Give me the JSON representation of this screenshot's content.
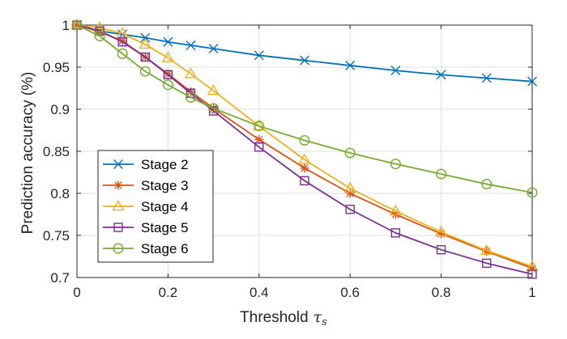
{
  "chart_data": {
    "type": "line",
    "title": "",
    "xlabel": "Threshold",
    "xlabel_symbol": "τ",
    "xlabel_subscript": "s",
    "ylabel": "Prediction accuracy (%)",
    "xlim": [
      0,
      1
    ],
    "ylim": [
      0.7,
      1
    ],
    "xticks": [
      0,
      0.2,
      0.4,
      0.6,
      0.8,
      1
    ],
    "xtick_labels": [
      "0",
      "0.2",
      "0.4",
      "0.6",
      "0.8",
      "1"
    ],
    "yticks": [
      0.7,
      0.75,
      0.8,
      0.85,
      0.9,
      0.95,
      1
    ],
    "ytick_labels": [
      "0.7",
      "0.75",
      "0.8",
      "0.85",
      "0.9",
      "0.95",
      "1"
    ],
    "grid": true,
    "legend_position": "bottom-left",
    "series": [
      {
        "name": "Stage 2",
        "color": "#0072BD",
        "marker": "x",
        "x": [
          0,
          0.05,
          0.1,
          0.15,
          0.2,
          0.25,
          0.3,
          0.4,
          0.5,
          0.6,
          0.7,
          0.8,
          0.9,
          1.0
        ],
        "y": [
          1.0,
          0.993,
          0.989,
          0.985,
          0.98,
          0.976,
          0.972,
          0.964,
          0.958,
          0.952,
          0.946,
          0.941,
          0.937,
          0.933
        ]
      },
      {
        "name": "Stage 3",
        "color": "#D95319",
        "marker": "asterisk",
        "x": [
          0,
          0.05,
          0.1,
          0.15,
          0.2,
          0.25,
          0.3,
          0.4,
          0.5,
          0.6,
          0.7,
          0.8,
          0.9,
          1.0
        ],
        "y": [
          1.0,
          0.992,
          0.981,
          0.962,
          0.942,
          0.921,
          0.901,
          0.864,
          0.83,
          0.8,
          0.775,
          0.752,
          0.731,
          0.711
        ]
      },
      {
        "name": "Stage 4",
        "color": "#EDB120",
        "marker": "triangle",
        "x": [
          0,
          0.05,
          0.1,
          0.15,
          0.2,
          0.25,
          0.3,
          0.4,
          0.5,
          0.6,
          0.7,
          0.8,
          0.9,
          1.0
        ],
        "y": [
          1.0,
          0.997,
          0.99,
          0.977,
          0.961,
          0.942,
          0.922,
          0.88,
          0.84,
          0.806,
          0.779,
          0.754,
          0.732,
          0.713
        ]
      },
      {
        "name": "Stage 5",
        "color": "#7E2F8E",
        "marker": "square",
        "x": [
          0,
          0.05,
          0.1,
          0.15,
          0.2,
          0.25,
          0.3,
          0.4,
          0.5,
          0.6,
          0.7,
          0.8,
          0.9,
          1.0
        ],
        "y": [
          1.0,
          0.993,
          0.98,
          0.962,
          0.941,
          0.919,
          0.898,
          0.855,
          0.815,
          0.781,
          0.753,
          0.733,
          0.717,
          0.704
        ]
      },
      {
        "name": "Stage 6",
        "color": "#77AC30",
        "marker": "circle",
        "x": [
          0,
          0.05,
          0.1,
          0.15,
          0.2,
          0.25,
          0.3,
          0.4,
          0.5,
          0.6,
          0.7,
          0.8,
          0.9,
          1.0
        ],
        "y": [
          1.0,
          0.987,
          0.966,
          0.945,
          0.929,
          0.914,
          0.901,
          0.88,
          0.863,
          0.848,
          0.835,
          0.823,
          0.811,
          0.801
        ]
      }
    ]
  }
}
